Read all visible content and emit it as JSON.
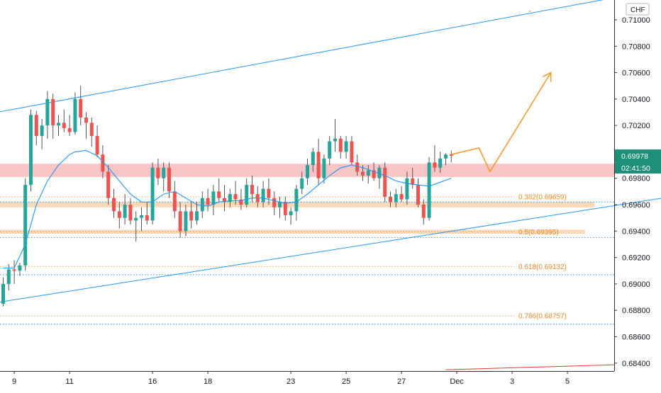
{
  "header": {
    "currency_label": "CHF"
  },
  "colors": {
    "bull": "#26a69a",
    "bear": "#ef5350",
    "wick": "#555555",
    "ma": "#2196f3",
    "channel": "#2196f3",
    "fib": "#f0a04b",
    "projection": "#f39c32",
    "resistance_zone": "#f8c6c6",
    "support_zone": "#fbd9b8",
    "price_tag": "#1e8f78",
    "bottom_line": "#e53935"
  },
  "price_tags": {
    "current_price": "0.69978",
    "countdown": "02:41:50"
  },
  "chart_data": {
    "type": "candlestick",
    "title": "",
    "xlabel": "",
    "ylabel": "",
    "ylim": [
      0.6834,
      0.7115
    ],
    "grid": false,
    "y_ticks": [
      "0.71000",
      "0.70800",
      "0.70600",
      "0.70400",
      "0.70200",
      "0.69800",
      "0.69600",
      "0.69400",
      "0.69200",
      "0.69000",
      "0.68800",
      "0.68600",
      "0.68400"
    ],
    "x_ticks": [
      {
        "label": "9",
        "bar": 2
      },
      {
        "label": "11",
        "bar": 12
      },
      {
        "label": "16",
        "bar": 27
      },
      {
        "label": "18",
        "bar": 37
      },
      {
        "label": "23",
        "bar": 52
      },
      {
        "label": "25",
        "bar": 62
      },
      {
        "label": "27",
        "bar": 72
      },
      {
        "label": "Dec",
        "bar": 82
      },
      {
        "label": "3",
        "bar": 92
      },
      {
        "label": "5",
        "bar": 102
      }
    ],
    "candles": [
      [
        0.6885,
        0.6905,
        0.6883,
        0.69
      ],
      [
        0.69,
        0.6915,
        0.6895,
        0.6911
      ],
      [
        0.6911,
        0.6918,
        0.69,
        0.691
      ],
      [
        0.691,
        0.6916,
        0.6906,
        0.6914
      ],
      [
        0.6914,
        0.698,
        0.691,
        0.6975
      ],
      [
        0.6975,
        0.7032,
        0.697,
        0.7028
      ],
      [
        0.7028,
        0.7031,
        0.7005,
        0.7012
      ],
      [
        0.7012,
        0.7025,
        0.7002,
        0.702
      ],
      [
        0.702,
        0.7046,
        0.701,
        0.704
      ],
      [
        0.704,
        0.7044,
        0.701,
        0.702
      ],
      [
        0.702,
        0.7028,
        0.7012,
        0.7022
      ],
      [
        0.7022,
        0.7032,
        0.7015,
        0.7018
      ],
      [
        0.7018,
        0.7028,
        0.7012,
        0.7015
      ],
      [
        0.7015,
        0.7045,
        0.7013,
        0.704
      ],
      [
        0.704,
        0.705,
        0.702,
        0.7026
      ],
      [
        0.7026,
        0.703,
        0.701,
        0.7022
      ],
      [
        0.7022,
        0.7026,
        0.7004,
        0.7012
      ],
      [
        0.7012,
        0.702,
        0.6996,
        0.6998
      ],
      [
        0.6998,
        0.7005,
        0.698,
        0.6985
      ],
      [
        0.6985,
        0.699,
        0.696,
        0.6965
      ],
      [
        0.6965,
        0.6972,
        0.695,
        0.6955
      ],
      [
        0.6955,
        0.6962,
        0.6942,
        0.695
      ],
      [
        0.695,
        0.6968,
        0.6945,
        0.696
      ],
      [
        0.696,
        0.6965,
        0.6945,
        0.6948
      ],
      [
        0.6948,
        0.6955,
        0.6932,
        0.695
      ],
      [
        0.695,
        0.6958,
        0.694,
        0.6952
      ],
      [
        0.6952,
        0.6962,
        0.6945,
        0.6948
      ],
      [
        0.6948,
        0.6992,
        0.6945,
        0.6988
      ],
      [
        0.6988,
        0.6995,
        0.6975,
        0.698
      ],
      [
        0.698,
        0.6992,
        0.697,
        0.6988
      ],
      [
        0.6988,
        0.6992,
        0.6965,
        0.697
      ],
      [
        0.697,
        0.6978,
        0.695,
        0.6955
      ],
      [
        0.6955,
        0.6962,
        0.6935,
        0.694
      ],
      [
        0.694,
        0.696,
        0.6936,
        0.6955
      ],
      [
        0.6955,
        0.6962,
        0.6942,
        0.6948
      ],
      [
        0.6948,
        0.6962,
        0.6945,
        0.6955
      ],
      [
        0.6955,
        0.697,
        0.695,
        0.6965
      ],
      [
        0.6965,
        0.6972,
        0.6955,
        0.696
      ],
      [
        0.696,
        0.6975,
        0.6952,
        0.697
      ],
      [
        0.697,
        0.698,
        0.6962,
        0.6965
      ],
      [
        0.6965,
        0.6975,
        0.6955,
        0.6962
      ],
      [
        0.6962,
        0.6972,
        0.6958,
        0.6968
      ],
      [
        0.6968,
        0.6978,
        0.696,
        0.6964
      ],
      [
        0.6964,
        0.6972,
        0.6956,
        0.696
      ],
      [
        0.696,
        0.698,
        0.6958,
        0.6975
      ],
      [
        0.6975,
        0.6982,
        0.6962,
        0.6968
      ],
      [
        0.6968,
        0.6974,
        0.6958,
        0.6962
      ],
      [
        0.6962,
        0.6978,
        0.6958,
        0.6972
      ],
      [
        0.6972,
        0.698,
        0.696,
        0.6965
      ],
      [
        0.6965,
        0.697,
        0.6952,
        0.6958
      ],
      [
        0.6958,
        0.6966,
        0.695,
        0.6962
      ],
      [
        0.6962,
        0.6966,
        0.6948,
        0.6952
      ],
      [
        0.6952,
        0.6958,
        0.6945,
        0.6955
      ],
      [
        0.6955,
        0.6975,
        0.6948,
        0.6972
      ],
      [
        0.6972,
        0.6985,
        0.6968,
        0.698
      ],
      [
        0.698,
        0.6995,
        0.6975,
        0.699
      ],
      [
        0.699,
        0.7003,
        0.6985,
        0.7
      ],
      [
        0.7,
        0.701,
        0.6975,
        0.698
      ],
      [
        0.698,
        0.6998,
        0.6976,
        0.6995
      ],
      [
        0.6995,
        0.7012,
        0.699,
        0.7008
      ],
      [
        0.7008,
        0.7025,
        0.7,
        0.701
      ],
      [
        0.701,
        0.7012,
        0.6995,
        0.7
      ],
      [
        0.7,
        0.7012,
        0.6995,
        0.7008
      ],
      [
        0.7008,
        0.7012,
        0.699,
        0.6992
      ],
      [
        0.6992,
        0.6998,
        0.6982,
        0.6985
      ],
      [
        0.6985,
        0.699,
        0.6978,
        0.6982
      ],
      [
        0.6982,
        0.699,
        0.6976,
        0.6986
      ],
      [
        0.6986,
        0.6992,
        0.6978,
        0.698
      ],
      [
        0.698,
        0.699,
        0.6972,
        0.6988
      ],
      [
        0.6988,
        0.6992,
        0.6962,
        0.6966
      ],
      [
        0.6966,
        0.697,
        0.6958,
        0.6962
      ],
      [
        0.6962,
        0.6972,
        0.6958,
        0.6968
      ],
      [
        0.6968,
        0.6974,
        0.6962,
        0.6964
      ],
      [
        0.6964,
        0.6985,
        0.696,
        0.698
      ],
      [
        0.698,
        0.6988,
        0.6972,
        0.6975
      ],
      [
        0.6975,
        0.698,
        0.6958,
        0.696
      ],
      [
        0.696,
        0.6964,
        0.6945,
        0.695
      ],
      [
        0.695,
        0.6996,
        0.6948,
        0.6992
      ],
      [
        0.6992,
        0.7005,
        0.6985,
        0.6988
      ],
      [
        0.6988,
        0.7,
        0.6984,
        0.6995
      ],
      [
        0.6995,
        0.6999,
        0.699,
        0.6998
      ],
      [
        0.6998,
        0.7001,
        0.6992,
        0.6997
      ]
    ],
    "moving_average": [
      [
        0,
        0.6912
      ],
      [
        2,
        0.6912
      ],
      [
        4,
        0.693
      ],
      [
        6,
        0.696
      ],
      [
        8,
        0.6978
      ],
      [
        10,
        0.699
      ],
      [
        12,
        0.6998
      ],
      [
        13,
        0.7
      ],
      [
        15,
        0.7001
      ],
      [
        17,
        0.6997
      ],
      [
        19,
        0.6988
      ],
      [
        21,
        0.6978
      ],
      [
        23,
        0.6968
      ],
      [
        25,
        0.6962
      ],
      [
        27,
        0.6962
      ],
      [
        29,
        0.6968
      ],
      [
        31,
        0.697
      ],
      [
        33,
        0.6965
      ],
      [
        35,
        0.696
      ],
      [
        37,
        0.6959
      ],
      [
        39,
        0.6962
      ],
      [
        41,
        0.6963
      ],
      [
        43,
        0.6963
      ],
      [
        45,
        0.6965
      ],
      [
        47,
        0.6965
      ],
      [
        49,
        0.6963
      ],
      [
        51,
        0.6961
      ],
      [
        53,
        0.6962
      ],
      [
        55,
        0.6968
      ],
      [
        57,
        0.6975
      ],
      [
        59,
        0.6982
      ],
      [
        61,
        0.6988
      ],
      [
        63,
        0.699
      ],
      [
        65,
        0.6988
      ],
      [
        67,
        0.6985
      ],
      [
        69,
        0.6982
      ],
      [
        71,
        0.6978
      ],
      [
        73,
        0.6976
      ],
      [
        75,
        0.6975
      ],
      [
        77,
        0.6974
      ],
      [
        79,
        0.6977
      ],
      [
        81,
        0.698
      ]
    ],
    "channel_upper": [
      [
        -1,
        0.703
      ],
      [
        121,
        0.7125
      ]
    ],
    "channel_lower": [
      [
        -1,
        0.6886
      ],
      [
        145,
        0.6982
      ]
    ],
    "bottom_line": [
      [
        80,
        0.6835
      ],
      [
        145,
        0.6843
      ]
    ],
    "resistance_zone": [
      0.6981,
      0.6991
    ],
    "support_zones": [
      [
        0.6958,
        0.6962
      ],
      [
        0.6938,
        0.6941
      ]
    ],
    "fib_levels": [
      {
        "label": "0.382(0.69659)",
        "value": 0.69659
      },
      {
        "label": "0.5(0.69395)",
        "value": 0.69395
      },
      {
        "label": "0.618(0.69132)",
        "value": 0.69132
      },
      {
        "label": "0.786(0.68757)",
        "value": 0.68757
      }
    ],
    "dotted_levels": [
      0.6962,
      0.6935,
      0.6907,
      0.68695
    ],
    "projection_path": [
      [
        81,
        0.6998
      ],
      [
        86,
        0.7003
      ],
      [
        88,
        0.6985
      ],
      [
        99,
        0.706
      ]
    ],
    "top_marker": [
      95,
      0.7115
    ]
  }
}
